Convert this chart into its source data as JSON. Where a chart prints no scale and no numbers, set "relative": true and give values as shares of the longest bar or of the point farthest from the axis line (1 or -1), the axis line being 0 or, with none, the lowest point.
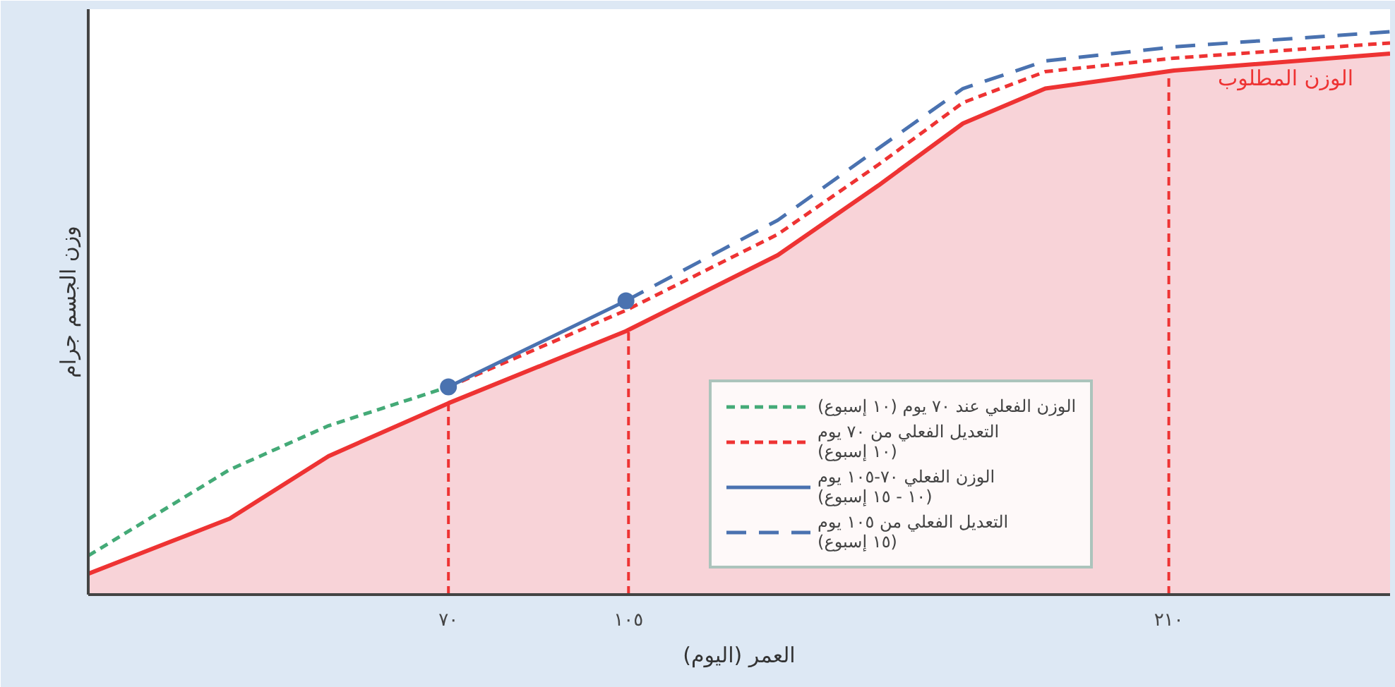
{
  "chart_data": {
    "type": "line",
    "relative": true,
    "xlabel": "العمر (اليوم)",
    "ylabel": "وزن الجسم جرام",
    "xlim": [
      0,
      253
    ],
    "xticks": [
      {
        "value": 70,
        "label": "٧٠"
      },
      {
        "value": 105,
        "label": "١٠٥"
      },
      {
        "value": 210,
        "label": "٢١٠"
      }
    ],
    "tick_labels": "x",
    "grid": false,
    "legend": "right",
    "series": [
      {
        "type": "area",
        "color": "#ee3333",
        "line_style": "solid",
        "x": [
          0,
          27.5,
          46.7,
          70,
          104.5,
          134,
          153.6,
          170,
          186,
          211,
          253
        ],
        "values": [
          0.037,
          0.135,
          0.246,
          0.34,
          0.468,
          0.603,
          0.727,
          0.837,
          0.899,
          0.931,
          0.961
        ]
      },
      {
        "name": "الوزن الفعلي عند ٧٠ يوم (١٠ إسبوع)",
        "color": "#44aa77",
        "line_style": "dashed",
        "x": [
          0,
          27.5,
          46.7,
          70
        ],
        "values": [
          0.069,
          0.222,
          0.3,
          0.369
        ]
      },
      {
        "name": "التعديل الفعلي من ٧٠ يوم\n(١٠ إسبوع)",
        "color": "#ee3333",
        "line_style": "dashed",
        "x": [
          70,
          104.5,
          134,
          153.6,
          170,
          186,
          211,
          253
        ],
        "values": [
          0.369,
          0.505,
          0.64,
          0.764,
          0.874,
          0.929,
          0.953,
          0.98
        ]
      },
      {
        "name": "الوزن الفعلي ٧٠-١٠٥ يوم\n(١٠ - ١٥ إسبوع)",
        "color": "#4a72b0",
        "line_style": "solid",
        "x": [
          70,
          104.5
        ],
        "values": [
          0.369,
          0.522
        ]
      },
      {
        "name": "التعديل الفعلي من ١٠٥ يوم\n(١٥ إسبوع)",
        "color": "#4a72b0",
        "line_style": "longdash",
        "x": [
          104.5,
          134,
          153.6,
          170,
          186,
          211,
          253
        ],
        "values": [
          0.522,
          0.665,
          0.793,
          0.899,
          0.948,
          0.973,
          1.0
        ]
      },
      {
        "type": "scatter",
        "color": "#4a72b0",
        "marker": "circle",
        "x": [
          70,
          104.5
        ],
        "values": [
          0.369,
          0.522
        ]
      }
    ],
    "ref_lines": [
      {
        "axis": "x",
        "value": 70,
        "color": "#ee3333",
        "line_style": "dashed"
      },
      {
        "axis": "x",
        "value": 105,
        "color": "#ee3333",
        "line_style": "dashed"
      },
      {
        "axis": "x",
        "value": 210,
        "color": "#ee3333",
        "line_style": "dashed"
      }
    ],
    "annotations": [
      "الوزن المطلوب"
    ]
  }
}
